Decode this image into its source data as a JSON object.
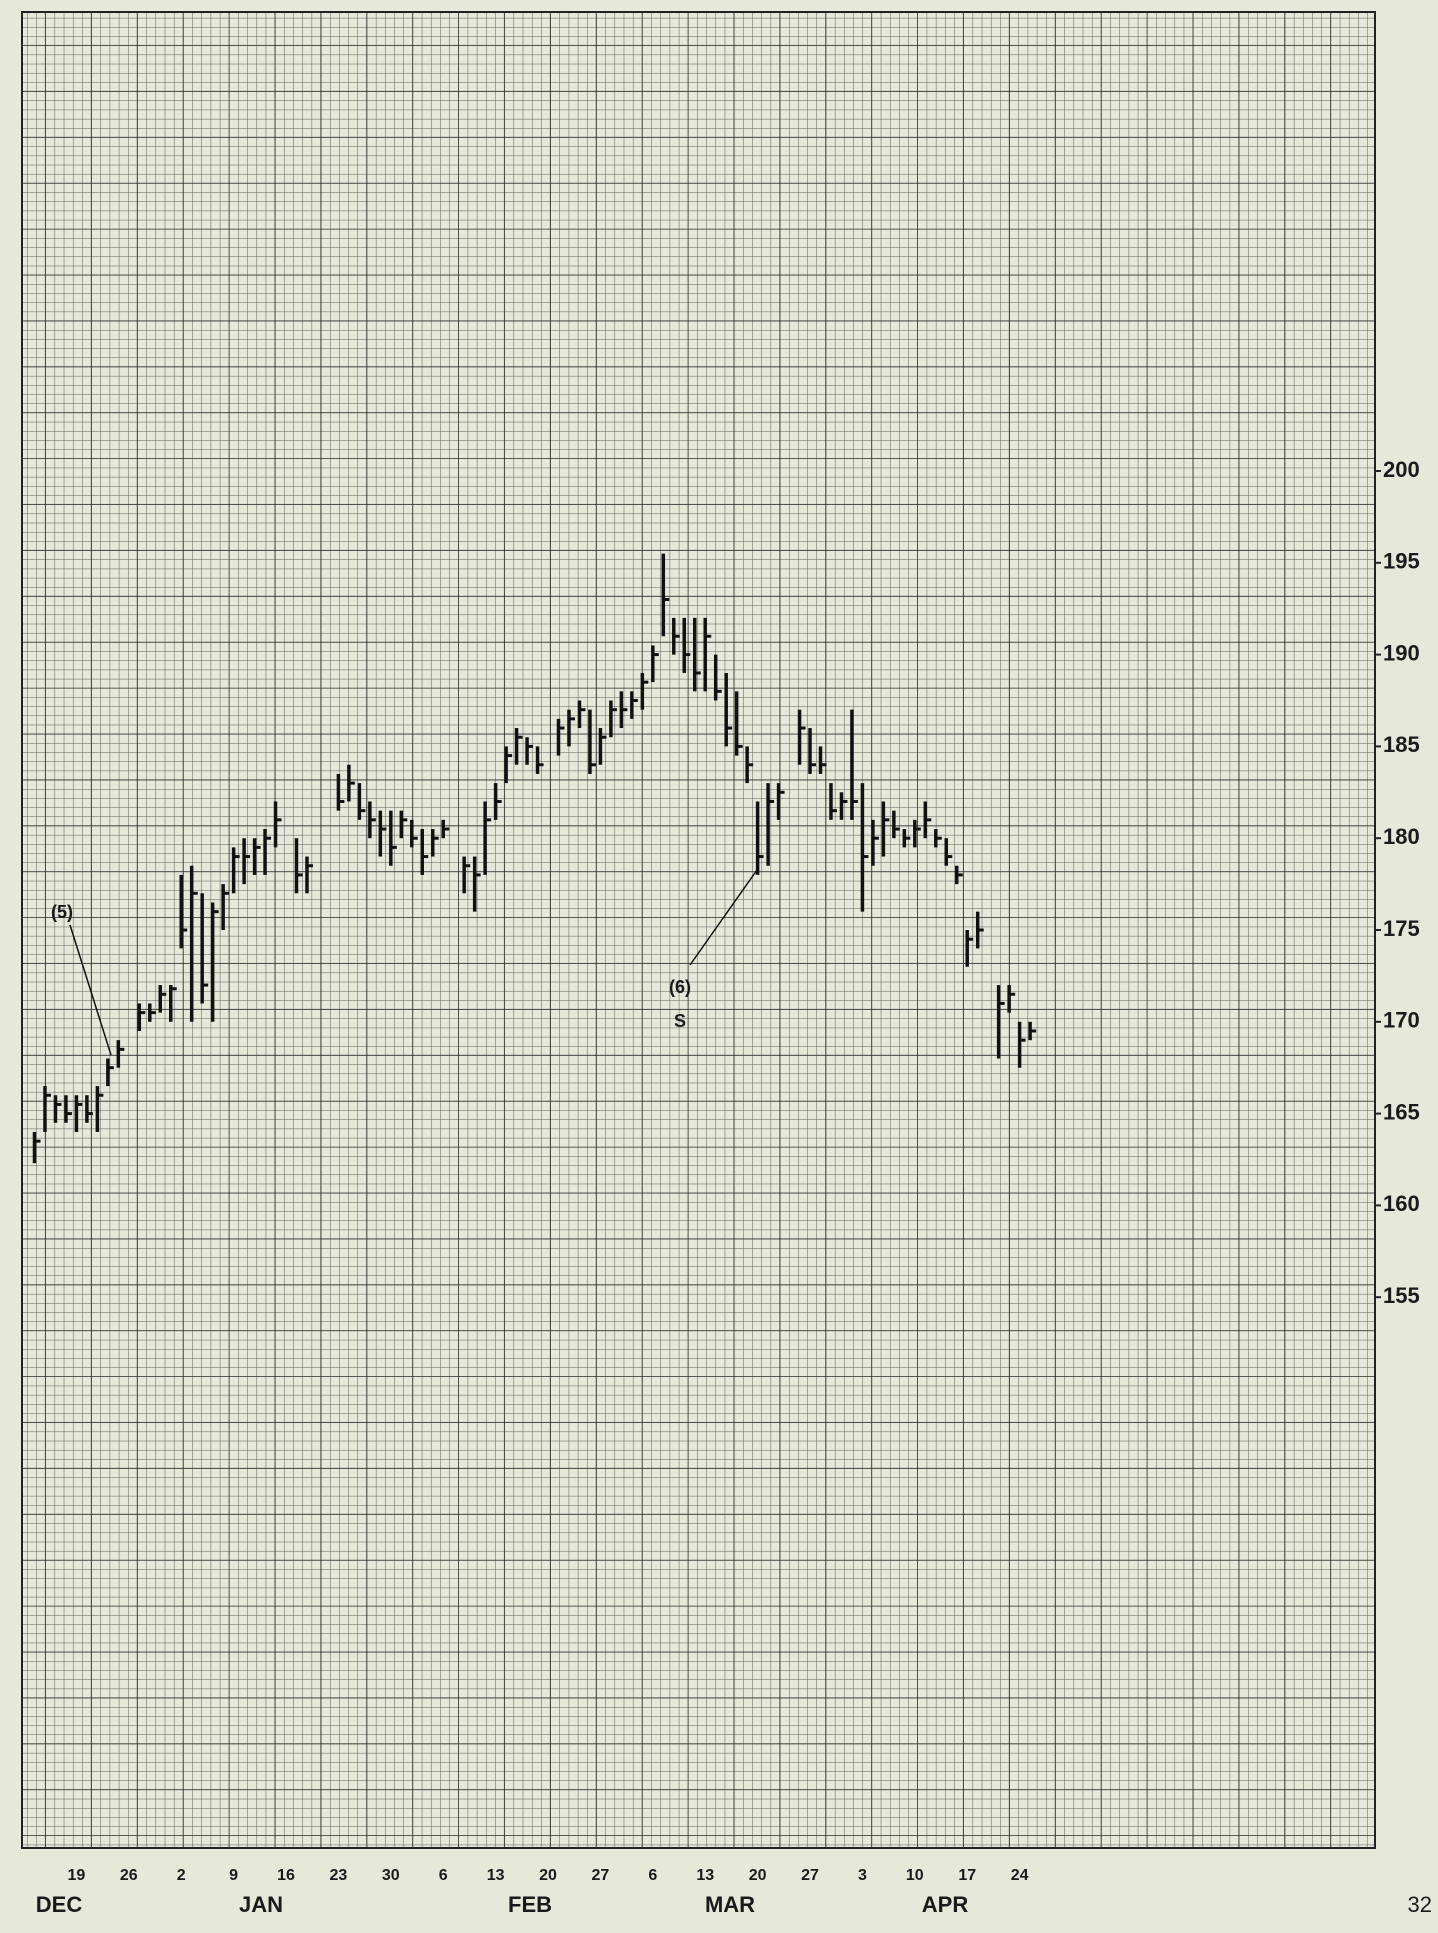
{
  "chart_data": {
    "type": "hlc",
    "categories": [
      null,
      null,
      null,
      null,
      "19",
      null,
      null,
      null,
      null,
      "26",
      null,
      null,
      null,
      null,
      "2",
      null,
      null,
      null,
      null,
      "9",
      null,
      null,
      null,
      null,
      "16",
      null,
      null,
      null,
      null,
      "23",
      null,
      null,
      null,
      null,
      "30",
      null,
      null,
      null,
      null,
      "6",
      null,
      null,
      null,
      null,
      "13",
      null,
      null,
      null,
      null,
      "20",
      null,
      null,
      null,
      null,
      "27",
      null,
      null,
      null,
      null,
      "6",
      null,
      null,
      null,
      null,
      "13",
      null,
      null,
      null,
      null,
      "20",
      null,
      null,
      null,
      null,
      "27",
      null,
      null,
      null,
      null,
      "3",
      null,
      null,
      null,
      null,
      "10",
      null,
      null,
      null,
      null,
      "17",
      null,
      null,
      null,
      null,
      "24",
      null
    ],
    "months": [
      "DEC",
      "JAN",
      "FEB",
      "MAR",
      "APR"
    ],
    "high": [
      164,
      166.5,
      166,
      166,
      166,
      166,
      166.5,
      168,
      169,
      null,
      171,
      171,
      172,
      172,
      178,
      178.5,
      177,
      176.5,
      177.5,
      179.5,
      180,
      180,
      180.5,
      182,
      null,
      180,
      179,
      null,
      null,
      183.5,
      184,
      183,
      182,
      181.5,
      181.5,
      181.5,
      181,
      180.5,
      180.5,
      181,
      null,
      179,
      179,
      182,
      183,
      185,
      186,
      185.5,
      185,
      null,
      186.5,
      187,
      187.5,
      187,
      186,
      187.5,
      188,
      188,
      189,
      190.5,
      195.5,
      192,
      192,
      192,
      192,
      190,
      189,
      188,
      185,
      182,
      183,
      183,
      null,
      187,
      186,
      185,
      183,
      182.5,
      187,
      183,
      181,
      182,
      181.5,
      180.5,
      181,
      182,
      180.5,
      180,
      178.5,
      175,
      176,
      null,
      172,
      172,
      170,
      170
    ],
    "low": [
      162.3,
      164,
      164.5,
      164.5,
      164,
      164.5,
      164,
      166.5,
      167.5,
      null,
      169.5,
      170,
      170.5,
      170,
      174,
      170,
      171,
      170,
      175,
      177,
      177.5,
      178,
      178,
      179.5,
      null,
      177,
      177,
      null,
      null,
      181.5,
      182,
      181,
      180,
      179,
      178.5,
      180,
      179.5,
      178,
      179,
      180,
      null,
      177,
      176,
      178,
      181,
      183,
      184,
      184,
      183.5,
      null,
      184.5,
      185,
      186,
      183.5,
      184,
      185.5,
      186,
      186.5,
      187,
      188.5,
      191,
      190,
      189,
      188,
      188,
      187.5,
      185,
      184.5,
      183,
      178,
      178.5,
      181,
      null,
      184,
      183.5,
      183.5,
      181,
      181,
      181,
      176,
      178.5,
      179,
      180,
      179.5,
      179.5,
      180,
      179.5,
      178.5,
      177.5,
      173,
      174,
      null,
      168,
      170.5,
      167.5,
      169
    ],
    "close": [
      163.5,
      166,
      165.5,
      165,
      165.5,
      165,
      166,
      167.5,
      168.5,
      null,
      170.5,
      170.5,
      171.5,
      171.8,
      175,
      177,
      172,
      176,
      177,
      179,
      179,
      179.5,
      180,
      181,
      null,
      178,
      178.5,
      null,
      null,
      182,
      183,
      181.5,
      181,
      180.5,
      179.5,
      181,
      180,
      179,
      180,
      180.5,
      null,
      178.5,
      178,
      181,
      182,
      184.5,
      185.5,
      185,
      184,
      null,
      186,
      186.5,
      187,
      184,
      185.5,
      187,
      187,
      187.5,
      188.5,
      190,
      193,
      191,
      190,
      189,
      191,
      188,
      186,
      185,
      184,
      179,
      182,
      182.5,
      null,
      186,
      184,
      184,
      181.5,
      182,
      182,
      179,
      180,
      181,
      180.5,
      180,
      180.5,
      181,
      180,
      179,
      178,
      174.5,
      175,
      null,
      171,
      171.5,
      169,
      169.5
    ],
    "ylim": [
      125,
      225
    ],
    "yticks": [
      155,
      160,
      165,
      170,
      175,
      180,
      185,
      190,
      195,
      200
    ],
    "annotations": [
      "(5)",
      "(6)",
      "S"
    ],
    "page_number": "32",
    "color": "#111111"
  }
}
